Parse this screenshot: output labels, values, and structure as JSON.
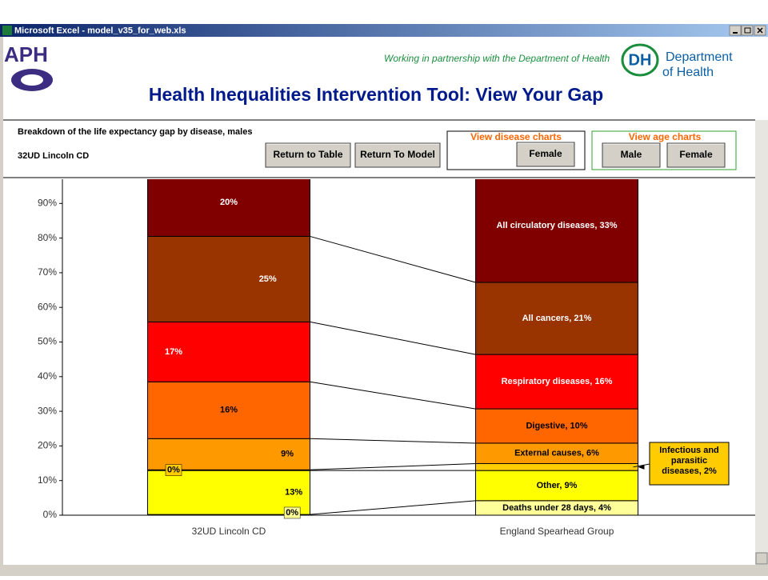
{
  "window": {
    "title": "Microsoft Excel - model_v35_for_web.xls"
  },
  "header": {
    "logo": "APH",
    "partnership": "Working in partnership with the Department of Health",
    "dh_logo": "DH",
    "dh_name": [
      "Department",
      "of Health"
    ],
    "title": "Health Inequalities Intervention Tool: View Your Gap"
  },
  "controls": {
    "subtitle": "Breakdown of the life expectancy gap by disease, males",
    "area": "32UD   Lincoln CD",
    "buttons": [
      "Return to Table",
      "Return To Model"
    ],
    "disease_charts": {
      "label": "View disease charts",
      "buttons": [
        "Female"
      ]
    },
    "age_charts": {
      "label": "View age charts",
      "buttons": [
        "Male",
        "Female"
      ]
    }
  },
  "chart_data": {
    "type": "stacked_bar",
    "categories": [
      "32UD   Lincoln CD",
      "England Spearhead Group"
    ],
    "series": [
      {
        "color": "#ffff99",
        "values": [
          0.2,
          4.2
        ],
        "value_labels": [
          "0%",
          "Deaths under 28 days, 4%"
        ]
      },
      {
        "color": "#ffff00",
        "values": [
          12.7,
          8.7
        ],
        "value_labels": [
          "13%",
          "Other, 9%"
        ]
      },
      {
        "color": "#ffcc00",
        "values": [
          0.2,
          2.0
        ],
        "value_labels": [
          "0%",
          "Infectious and parasitic diseases, 2%"
        ]
      },
      {
        "color": "#ff9900",
        "values": [
          9.0,
          5.9
        ],
        "value_labels": [
          "9%",
          "External causes, 6%"
        ]
      },
      {
        "color": "#ff6600",
        "values": [
          16.4,
          9.9
        ],
        "value_labels": [
          "16%",
          "Digestive, 10%"
        ]
      },
      {
        "color": "#ff0000",
        "values": [
          17.3,
          15.7
        ],
        "value_labels": [
          "17%",
          "Respiratory diseases, 16%"
        ]
      },
      {
        "color": "#993300",
        "values": [
          24.7,
          20.8
        ],
        "value_labels": [
          "25%",
          "All cancers, 21%"
        ]
      },
      {
        "color": "#800000",
        "values": [
          19.5,
          32.8
        ],
        "value_labels": [
          "20%",
          "All circulatory diseases, 33%"
        ]
      }
    ],
    "ylim": [
      0,
      97
    ],
    "yticks": [
      {
        "value": 0,
        "label": "0%"
      },
      {
        "value": 10,
        "label": "10%"
      },
      {
        "value": 20,
        "label": "20%"
      },
      {
        "value": 30,
        "label": "30%"
      },
      {
        "value": 40,
        "label": "40%"
      },
      {
        "value": 50,
        "label": "50%"
      },
      {
        "value": 60,
        "label": "60%"
      },
      {
        "value": 70,
        "label": "70%"
      },
      {
        "value": 80,
        "label": "80%"
      },
      {
        "value": 90,
        "label": "90%"
      }
    ]
  }
}
